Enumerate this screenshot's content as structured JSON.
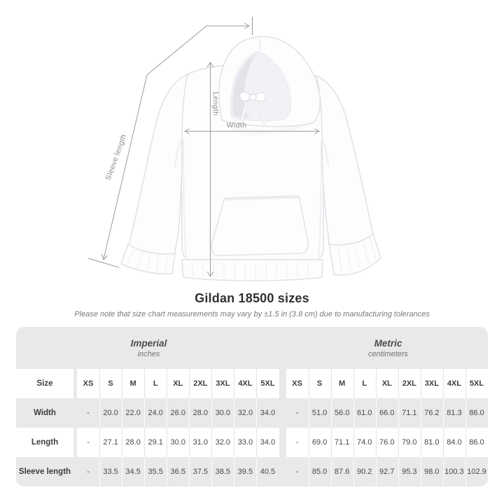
{
  "diagram": {
    "labels": {
      "length": "Length",
      "width": "Width",
      "sleeve_length": "Sleeve length"
    }
  },
  "heading": {
    "title": "Gildan 18500 sizes",
    "note": "Please note that size chart measurements may vary by ±1.5 in (3.8 cm) due to manufacturing tolerances"
  },
  "table": {
    "unit_groups": [
      {
        "label": "Imperial",
        "sublabel": "inches"
      },
      {
        "label": "Metric",
        "sublabel": "centimeters"
      }
    ],
    "size_header": "Size",
    "sizes": [
      "XS",
      "S",
      "M",
      "L",
      "XL",
      "2XL",
      "3XL",
      "4XL",
      "5XL"
    ],
    "rows": [
      {
        "label": "Width",
        "imperial": [
          "-",
          "20.0",
          "22.0",
          "24.0",
          "26.0",
          "28.0",
          "30.0",
          "32.0",
          "34.0"
        ],
        "metric": [
          "-",
          "51.0",
          "56.0",
          "61.0",
          "66.0",
          "71.1",
          "76.2",
          "81.3",
          "86.0"
        ]
      },
      {
        "label": "Length",
        "imperial": [
          "-",
          "27.1",
          "28.0",
          "29.1",
          "30.0",
          "31.0",
          "32.0",
          "33.0",
          "34.0"
        ],
        "metric": [
          "-",
          "69.0",
          "71.1",
          "74.0",
          "76.0",
          "79.0",
          "81.0",
          "84.0",
          "86.0"
        ]
      },
      {
        "label": "Sleeve length",
        "imperial": [
          "-",
          "33.5",
          "34.5",
          "35.5",
          "36.5",
          "37.5",
          "38.5",
          "39.5",
          "40.5"
        ],
        "metric": [
          "-",
          "85.0",
          "87.6",
          "90.2",
          "92.7",
          "95.3",
          "98.0",
          "100.3",
          "102.9"
        ]
      }
    ]
  },
  "colors": {
    "panel_bg": "#e9e9e9",
    "measure_line": "#9c9c9c",
    "measure_label": "#8c8c8c",
    "title_text": "#303030",
    "note_text": "#7a7a7a"
  }
}
